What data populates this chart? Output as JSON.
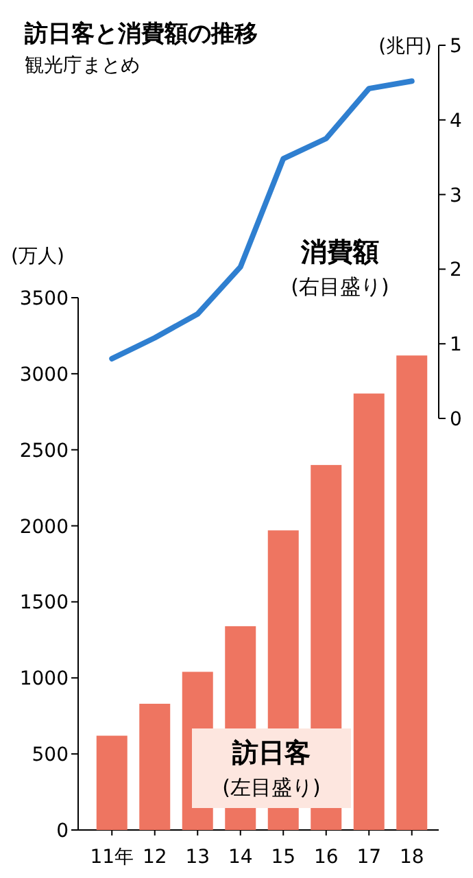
{
  "chart_data": [
    {
      "type": "line",
      "title": "訪日客と消費額の推移",
      "subtitle": "観光庁まとめ",
      "ylabel": "(兆円)",
      "categories": [
        null,
        null,
        null,
        null,
        null,
        null,
        null,
        null
      ],
      "series": [
        {
          "name": "消費額",
          "color": "#2f7fd0",
          "values": [
            0.8,
            1.08,
            1.4,
            2.03,
            3.48,
            3.75,
            4.42,
            4.52
          ]
        }
      ],
      "annotations": [
        "(右目盛り)"
      ],
      "ylim": [
        0,
        5
      ],
      "yticks": [
        0,
        1,
        2,
        3,
        4,
        5
      ],
      "tick_labels": "y",
      "legend": false,
      "grid": false,
      "marker": "none"
    },
    {
      "type": "bar",
      "ylabel": "(万人)",
      "categories": [
        "11年",
        "12",
        "13",
        "14",
        "15",
        "16",
        "17",
        "18"
      ],
      "series": [
        {
          "name": "訪日客",
          "color": "#ee7561",
          "values": [
            620,
            830,
            1040,
            1340,
            1970,
            2400,
            2870,
            3120
          ]
        }
      ],
      "annotations": [
        "(左目盛り)"
      ],
      "ylim": [
        0,
        3500
      ],
      "yticks": [
        0,
        500,
        1000,
        1500,
        2000,
        2500,
        3000,
        3500
      ],
      "legend": false,
      "grid": false
    }
  ]
}
